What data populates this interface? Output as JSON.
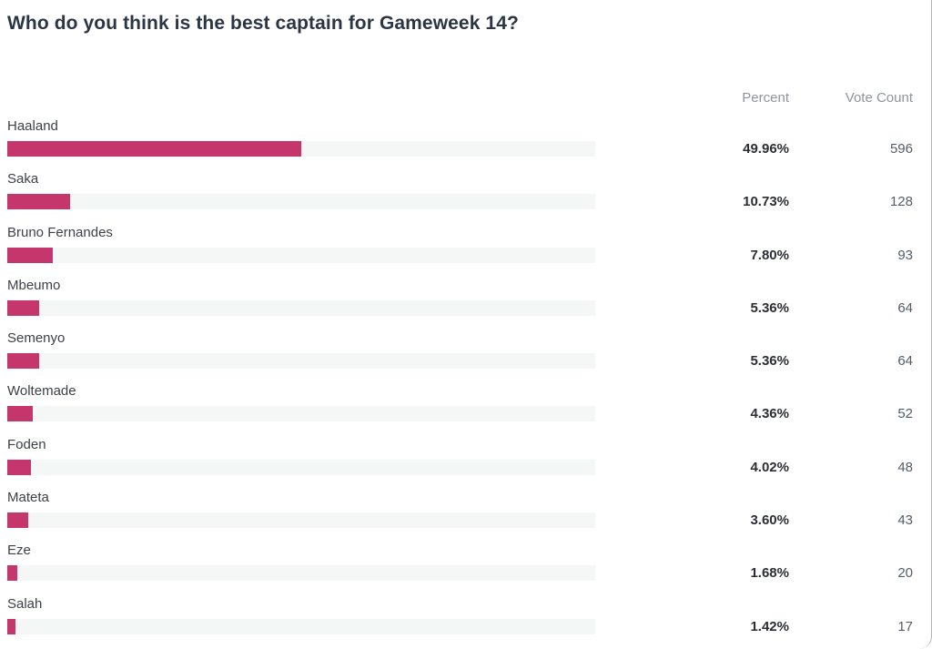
{
  "chart_data": {
    "type": "bar",
    "orientation": "horizontal",
    "title": "Who do you think is the best captain for Gameweek 14?",
    "categories": [
      "Haaland",
      "Saka",
      "Bruno Fernandes",
      "Mbeumo",
      "Semenyo",
      "Woltemade",
      "Foden",
      "Mateta",
      "Eze",
      "Salah"
    ],
    "series": [
      {
        "name": "Percent",
        "values": [
          49.96,
          10.73,
          7.8,
          5.36,
          5.36,
          4.36,
          4.02,
          3.6,
          1.68,
          1.42
        ]
      },
      {
        "name": "Vote Count",
        "values": [
          596,
          128,
          93,
          64,
          64,
          52,
          48,
          43,
          20,
          17
        ]
      }
    ],
    "xlabel": "",
    "ylabel": "",
    "xlim": [
      0,
      100
    ],
    "grid": false,
    "legend": false,
    "bar_color": "#c5366c",
    "track_color": "#f5f6f6"
  },
  "poll": {
    "title": "Who do you think is the best captain for Gameweek 14?",
    "header": {
      "percent": "Percent",
      "votes": "Vote Count"
    },
    "rows": [
      {
        "label": "Haaland",
        "percent": 49.96,
        "percent_label": "49.96%",
        "votes": "596"
      },
      {
        "label": "Saka",
        "percent": 10.73,
        "percent_label": "10.73%",
        "votes": "128"
      },
      {
        "label": "Bruno Fernandes",
        "percent": 7.8,
        "percent_label": "7.80%",
        "votes": "93"
      },
      {
        "label": "Mbeumo",
        "percent": 5.36,
        "percent_label": "5.36%",
        "votes": "64"
      },
      {
        "label": "Semenyo",
        "percent": 5.36,
        "percent_label": "5.36%",
        "votes": "64"
      },
      {
        "label": "Woltemade",
        "percent": 4.36,
        "percent_label": "4.36%",
        "votes": "52"
      },
      {
        "label": "Foden",
        "percent": 4.02,
        "percent_label": "4.02%",
        "votes": "48"
      },
      {
        "label": "Mateta",
        "percent": 3.6,
        "percent_label": "3.60%",
        "votes": "43"
      },
      {
        "label": "Eze",
        "percent": 1.68,
        "percent_label": "1.68%",
        "votes": "20"
      },
      {
        "label": "Salah",
        "percent": 1.42,
        "percent_label": "1.42%",
        "votes": "17"
      }
    ]
  },
  "colors": {
    "bar": "#c5366c",
    "track": "#f5f6f6",
    "title_text": "#2b3543",
    "label_text": "#3d4148",
    "percent_text": "#2b2e33",
    "votes_text": "#525d68",
    "header_text": "#8f959d",
    "border": "#b3b3b3"
  }
}
